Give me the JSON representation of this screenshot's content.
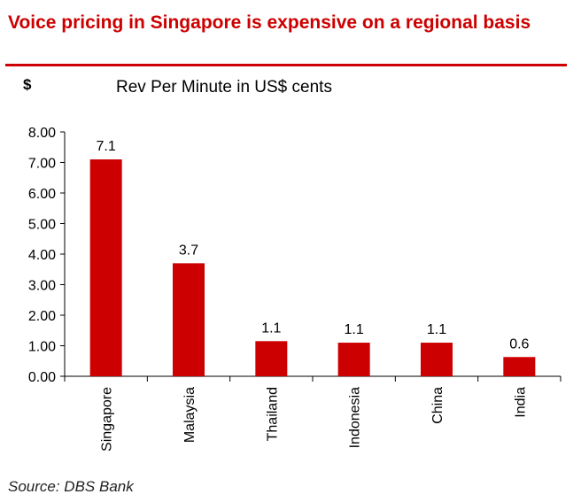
{
  "header": {
    "headline": "Voice pricing in Singapore is expensive on a regional basis"
  },
  "colors": {
    "accent": "#cc0000",
    "bar": "#cc0000",
    "axis": "#000000"
  },
  "chart_data": {
    "type": "bar",
    "title": "Rev Per Minute in US$ cents",
    "ylabel": "$",
    "xlabel": "",
    "categories": [
      "Singapore",
      "Malaysia",
      "Thailand",
      "Indonesia",
      "China",
      "India"
    ],
    "values": [
      7.1,
      3.7,
      1.15,
      1.1,
      1.1,
      0.63
    ],
    "value_labels": [
      "7.1",
      "3.7",
      "1.1",
      "1.1",
      "1.1",
      "0.6"
    ],
    "yticks": [
      "0.00",
      "1.00",
      "2.00",
      "3.00",
      "4.00",
      "5.00",
      "6.00",
      "7.00",
      "8.00"
    ],
    "ylim": [
      0,
      8
    ],
    "grid": false,
    "legend": "none"
  },
  "footer": {
    "source": "Source: DBS Bank"
  }
}
